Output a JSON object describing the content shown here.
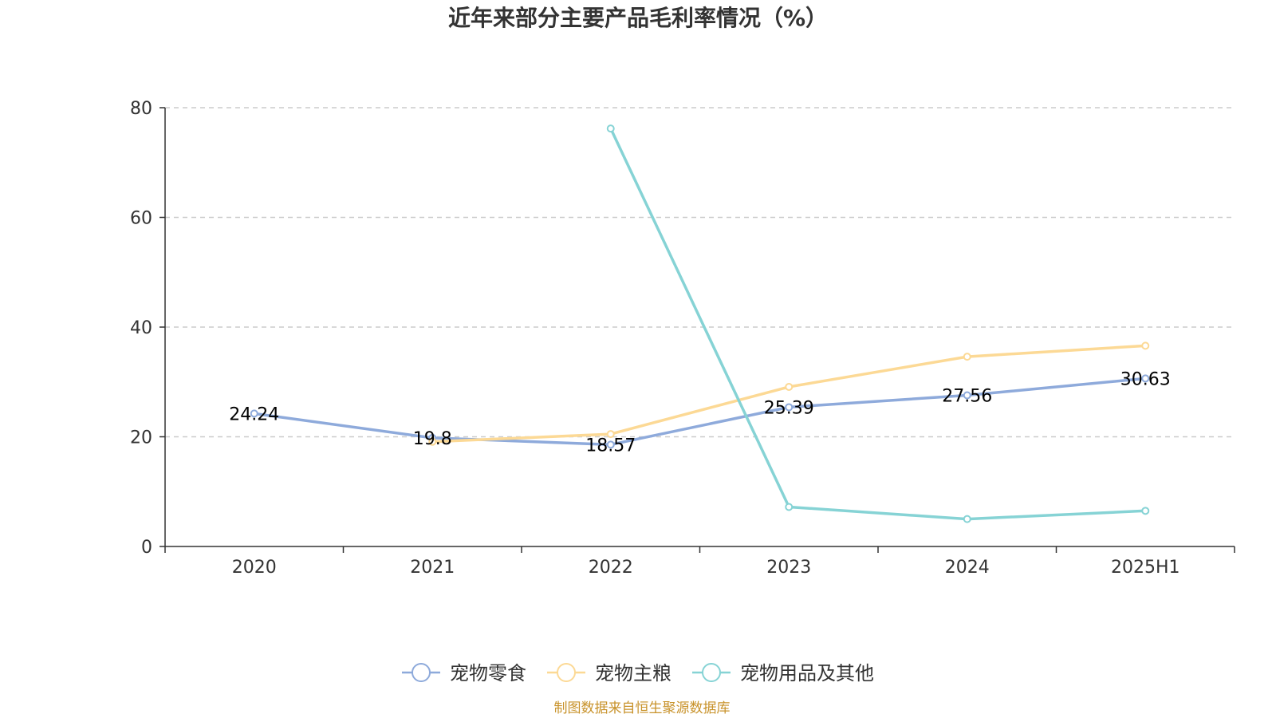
{
  "source_note": "制图数据来自恒生聚源数据库",
  "colors": {
    "source_text": "#c8922a",
    "axis": "#333333",
    "grid": "#cccccc"
  },
  "chart_data": {
    "type": "line",
    "title": "近年来部分主要产品毛利率情况（%）",
    "xlabel": "",
    "ylabel": "",
    "categories": [
      "2020",
      "2021",
      "2022",
      "2023",
      "2024",
      "2025H1"
    ],
    "ylim": [
      0,
      80
    ],
    "yticks": [
      0,
      20,
      40,
      60,
      80
    ],
    "grid": true,
    "legend_position": "bottom",
    "series": [
      {
        "name": "宠物零食",
        "color": "#8eaadb",
        "values": [
          24.24,
          19.8,
          18.57,
          25.39,
          27.56,
          30.63
        ],
        "labels": [
          "24.24",
          "19.8",
          "18.57",
          "25.39",
          "27.56",
          "30.63"
        ]
      },
      {
        "name": "宠物主粮",
        "color": "#fcd995",
        "values": [
          null,
          19.1,
          20.5,
          29.1,
          34.6,
          36.6
        ],
        "labels": []
      },
      {
        "name": "宠物用品及其他",
        "color": "#86d3d5",
        "values": [
          null,
          null,
          76.2,
          7.2,
          5.0,
          6.5
        ],
        "labels": []
      }
    ]
  }
}
